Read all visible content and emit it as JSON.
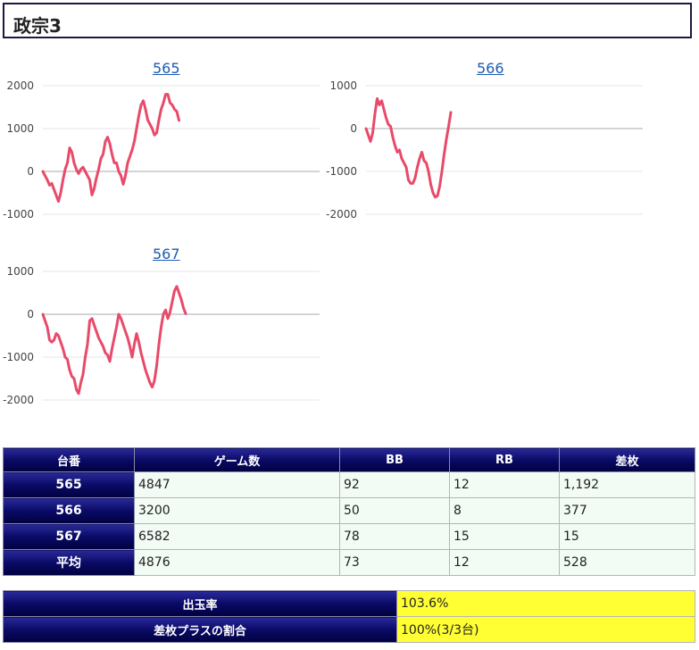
{
  "page_title": "政宗3",
  "chart_data": [
    {
      "type": "line",
      "title": "565",
      "color": "#e84a6a",
      "grid": true,
      "ylim": [
        -1000,
        2000
      ],
      "yticks": [
        2000,
        1000,
        0,
        -1000
      ],
      "ytick_labels": [
        "2000",
        "1000",
        "0",
        "-1000"
      ],
      "values": [
        0,
        -100,
        -200,
        -320,
        -280,
        -420,
        -560,
        -700,
        -500,
        -200,
        50,
        200,
        550,
        450,
        200,
        50,
        -50,
        50,
        100,
        0,
        -100,
        -200,
        -550,
        -400,
        -150,
        50,
        300,
        400,
        700,
        800,
        650,
        400,
        200,
        200,
        0,
        -100,
        -300,
        -100,
        200,
        350,
        500,
        700,
        1000,
        1300,
        1550,
        1650,
        1450,
        1200,
        1100,
        1000,
        850,
        900,
        1200,
        1450,
        1600,
        1800,
        1800,
        1600,
        1550,
        1450,
        1400,
        1192
      ]
    },
    {
      "type": "line",
      "title": "566",
      "color": "#e84a6a",
      "grid": true,
      "ylim": [
        -2000,
        1000
      ],
      "yticks": [
        1000,
        0,
        -1000,
        -2000
      ],
      "ytick_labels": [
        "1000",
        "0",
        "-1000",
        "-2000"
      ],
      "values": [
        0,
        -150,
        -300,
        -100,
        350,
        700,
        550,
        650,
        450,
        250,
        100,
        50,
        -200,
        -400,
        -550,
        -500,
        -700,
        -800,
        -900,
        -1200,
        -1280,
        -1280,
        -1150,
        -900,
        -700,
        -550,
        -750,
        -800,
        -1000,
        -1300,
        -1500,
        -1600,
        -1570,
        -1350,
        -1000,
        -600,
        -250,
        50,
        377
      ]
    },
    {
      "type": "line",
      "title": "567",
      "color": "#e84a6a",
      "grid": true,
      "ylim": [
        -2000,
        1000
      ],
      "yticks": [
        1000,
        0,
        -1000,
        -2000
      ],
      "ytick_labels": [
        "1000",
        "0",
        "-1000",
        "-2000"
      ],
      "values": [
        0,
        -150,
        -300,
        -600,
        -650,
        -600,
        -450,
        -500,
        -650,
        -800,
        -1000,
        -1050,
        -1300,
        -1450,
        -1500,
        -1750,
        -1850,
        -1600,
        -1400,
        -1000,
        -700,
        -150,
        -100,
        -250,
        -400,
        -550,
        -650,
        -750,
        -900,
        -950,
        -1100,
        -800,
        -550,
        -300,
        0,
        -100,
        -250,
        -400,
        -550,
        -750,
        -1000,
        -700,
        -450,
        -650,
        -900,
        -1100,
        -1300,
        -1450,
        -1600,
        -1700,
        -1550,
        -1200,
        -700,
        -300,
        0,
        100,
        -100,
        50,
        300,
        550,
        650,
        500,
        350,
        150,
        15
      ]
    }
  ],
  "table": {
    "headers": [
      "台番",
      "ゲーム数",
      "BB",
      "RB",
      "差枚"
    ],
    "rows": [
      {
        "id": "565",
        "cells": [
          "4847",
          "92",
          "12",
          "1,192"
        ]
      },
      {
        "id": "566",
        "cells": [
          "3200",
          "50",
          "8",
          "377"
        ]
      },
      {
        "id": "567",
        "cells": [
          "6582",
          "78",
          "15",
          "15"
        ]
      },
      {
        "id": "平均",
        "cells": [
          "4876",
          "73",
          "12",
          "528"
        ]
      }
    ]
  },
  "summary": [
    {
      "label": "出玉率",
      "value": "103.6%"
    },
    {
      "label": "差枚プラスの割合",
      "value": "100%(3/3台)"
    }
  ]
}
